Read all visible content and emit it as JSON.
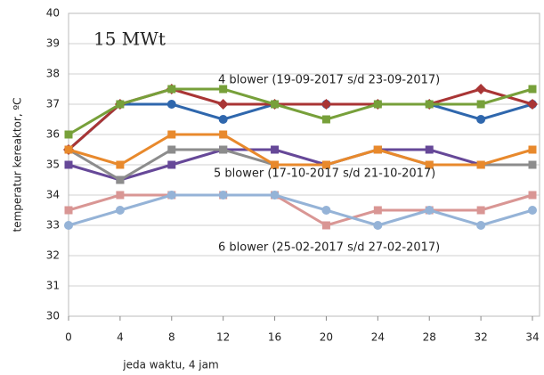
{
  "chart_data": {
    "type": "line",
    "categories": [
      "0",
      "4",
      "8",
      "12",
      "16",
      "20",
      "24",
      "28",
      "32",
      "34"
    ],
    "ylim": [
      30,
      40
    ],
    "yticks": [
      30,
      31,
      32,
      33,
      34,
      35,
      36,
      37,
      38,
      39,
      40
    ],
    "grid": true,
    "xlabel": "jeda waktu, 4 jam",
    "ylabel": "temperatur kereaktor, ºC",
    "annotations": [
      "15 MWt",
      "4 blower (19-09-2017 s/d 23-09-2017)",
      "5 blower (17-10-2017 s/d 21-10-2017)",
      "6 blower (25-02-2017 s/d 27-02-2017)"
    ],
    "series": [
      {
        "color": "#2f67ad",
        "marker": "circle",
        "values": [
          35.5,
          37,
          37,
          36.5,
          37,
          37,
          37,
          37,
          36.5,
          37
        ]
      },
      {
        "color": "#a93535",
        "marker": "diamond",
        "values": [
          35.5,
          37,
          37.5,
          37,
          37,
          37,
          37,
          37,
          37.5,
          37
        ]
      },
      {
        "color": "#77a03a",
        "marker": "square",
        "values": [
          36,
          37,
          37.5,
          37.5,
          37,
          36.5,
          37,
          37,
          37,
          37.5
        ]
      },
      {
        "color": "#664898",
        "marker": "square",
        "values": [
          35,
          34.5,
          35,
          35.5,
          35.5,
          35,
          35.5,
          35.5,
          35,
          35
        ]
      },
      {
        "color": "#8c8c8c",
        "marker": "square",
        "values": [
          35.5,
          34.5,
          35.5,
          35.5,
          35,
          35,
          35.5,
          35,
          35,
          35
        ]
      },
      {
        "color": "#e8892c",
        "marker": "square",
        "values": [
          35.5,
          35,
          36,
          36,
          35,
          35,
          35.5,
          35,
          35,
          35.5
        ]
      },
      {
        "color": "#d99694",
        "marker": "square",
        "values": [
          33.5,
          34,
          34,
          34,
          34,
          33,
          33.5,
          33.5,
          33.5,
          34
        ]
      },
      {
        "color": "#95b3d7",
        "marker": "circle",
        "values": [
          33,
          33.5,
          34,
          34,
          34,
          33.5,
          33,
          33.5,
          33,
          33.5
        ]
      }
    ]
  }
}
